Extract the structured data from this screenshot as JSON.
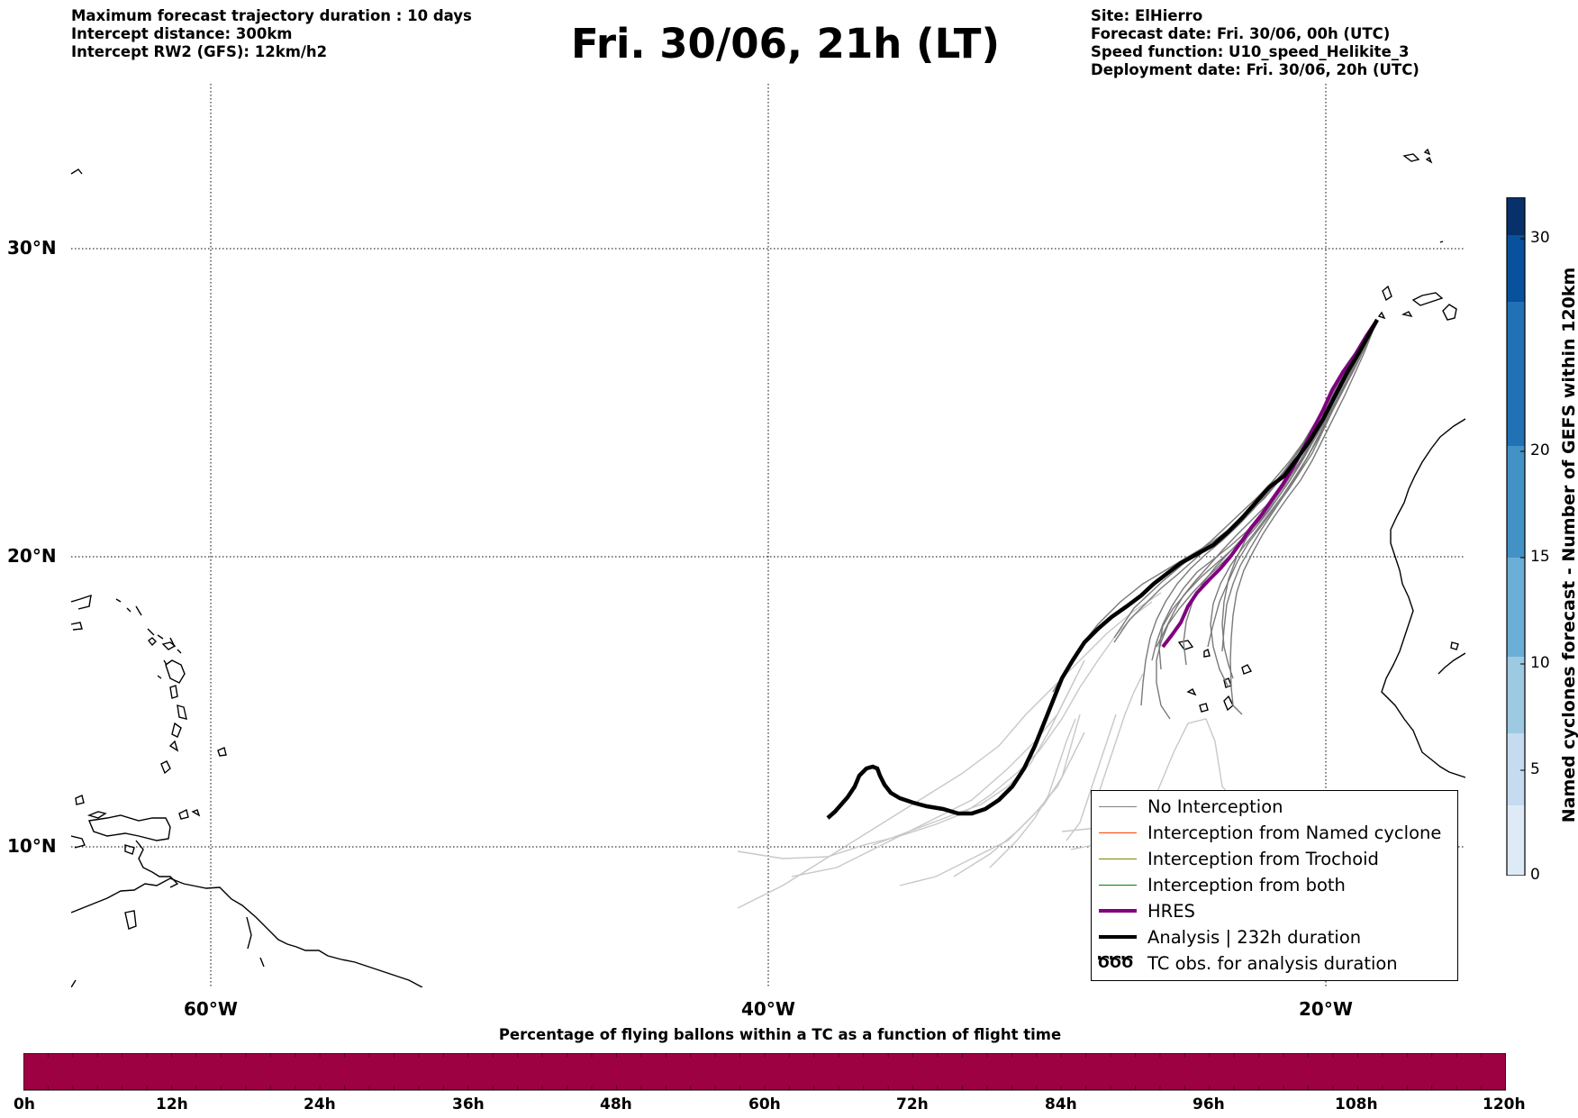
{
  "header": {
    "left_lines": [
      "Maximum forecast trajectory duration : 10 days",
      "Intercept distance: 300km",
      "Intercept RW2 (GFS):  12km/h2"
    ],
    "title": "Fri. 30/06, 21h (LT)",
    "right_lines": [
      "Site: ElHierro",
      "Forecast date: Fri. 30/06, 00h (UTC)",
      "Speed function: U10_speed_Helikite_3",
      "Deployment date: Fri. 30/06, 20h (UTC)"
    ]
  },
  "map": {
    "lat_labels": [
      "30°N",
      "20°N",
      "10°N"
    ],
    "lon_labels": [
      "60°W",
      "40°W",
      "20°W"
    ],
    "extent_lon": [
      -65,
      -15
    ],
    "extent_lat": [
      5.5,
      35
    ]
  },
  "legend": {
    "items": [
      {
        "label": "No Interception",
        "color": "#808080",
        "width": 1.5,
        "style": "line"
      },
      {
        "label": "Interception from Named cyclone",
        "color": "#ff4500",
        "width": 1.5,
        "style": "line"
      },
      {
        "label": "Interception from Trochoid",
        "color": "#808000",
        "width": 1.5,
        "style": "line"
      },
      {
        "label": "Interception from both",
        "color": "#008000",
        "width": 1.5,
        "style": "line"
      },
      {
        "label": "HRES",
        "color": "#800080",
        "width": 4,
        "style": "line"
      },
      {
        "label": "Analysis | 232h duration",
        "color": "#000000",
        "width": 4.5,
        "style": "line"
      },
      {
        "label": "TC obs. for analysis duration",
        "color": "#000000",
        "width": 1,
        "style": "tc-symbol",
        "symbol": "ԾԾԾ"
      }
    ]
  },
  "colorbar": {
    "label": "Named cyclones forecast - Number of GEFS within 120km",
    "ticks": [
      "0",
      "5",
      "10",
      "15",
      "20",
      "30"
    ],
    "colors": [
      "#deebf7",
      "#c6dbef",
      "#9ecae1",
      "#6baed6",
      "#4292c6",
      "#2171b5",
      "#08519c",
      "#08306b"
    ]
  },
  "timeline": {
    "label": "Percentage of flying ballons within a TC as a function of flight time",
    "ticks": [
      "0h",
      "12h",
      "24h",
      "36h",
      "48h",
      "60h",
      "72h",
      "84h",
      "96h",
      "108h",
      "120h"
    ],
    "fill_color": "#9e0142"
  }
}
